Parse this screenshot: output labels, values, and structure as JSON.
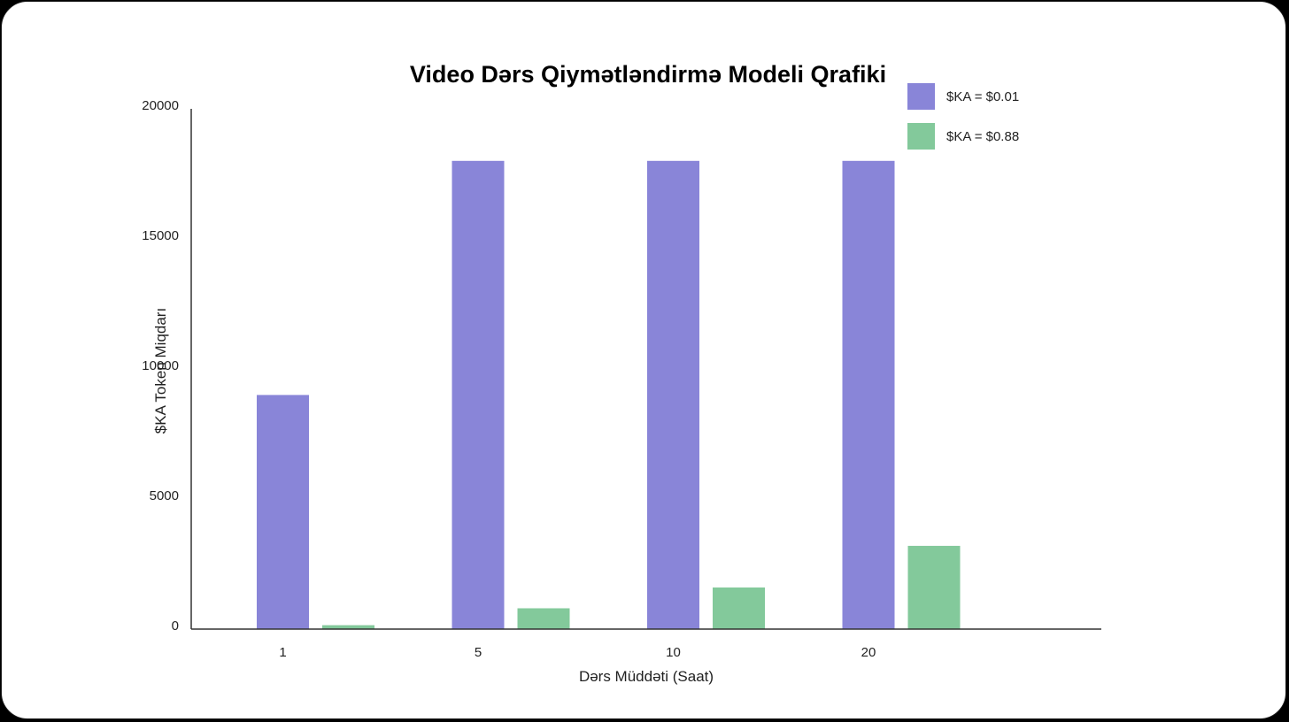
{
  "chart_data": {
    "type": "bar",
    "title": "Video Dərs Qiymətləndirmə Modeli Qrafiki",
    "xlabel": "Dərs Müddəti (Saat)",
    "ylabel": "$KA Token Miqdarı",
    "categories": [
      "1",
      "5",
      "10",
      "20"
    ],
    "ylim": [
      0,
      20000
    ],
    "yticks": [
      "0",
      "5000",
      "10000",
      "15000",
      "20000"
    ],
    "series": [
      {
        "name": "$KA = $0.01",
        "color": "#8985d8",
        "values": [
          9000,
          18000,
          18000,
          18000
        ]
      },
      {
        "name": "$KA = $0.88",
        "color": "#83c99b",
        "values": [
          150,
          800,
          1600,
          3200
        ]
      }
    ],
    "legend_position": "top-right",
    "grid": false
  }
}
